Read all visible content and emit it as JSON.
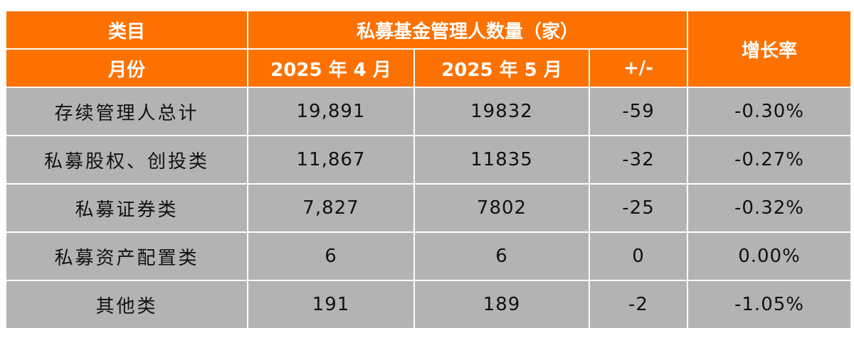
{
  "chart_data": {
    "type": "table",
    "header": {
      "category_label": "类目",
      "group_label": "私募基金管理人数量（家）",
      "growth_label": "增长率",
      "month_label": "月份",
      "col_april": "2025 年 4 月",
      "col_may": "2025 年 5 月",
      "col_change": "+/-"
    },
    "rows": [
      {
        "category": "存续管理人总计",
        "april": "19,891",
        "may": "19832",
        "change": "-59",
        "growth": "-0.30%"
      },
      {
        "category": "私募股权、创投类",
        "april": "11,867",
        "may": "11835",
        "change": "-32",
        "growth": "-0.27%"
      },
      {
        "category": "私募证券类",
        "april": "7,827",
        "may": "7802",
        "change": "-25",
        "growth": "-0.32%"
      },
      {
        "category": "私募资产配置类",
        "april": "6",
        "may": "6",
        "change": "0",
        "growth": "0.00%"
      },
      {
        "category": "其他类",
        "april": "191",
        "may": "189",
        "change": "-2",
        "growth": "-1.05%"
      }
    ]
  }
}
